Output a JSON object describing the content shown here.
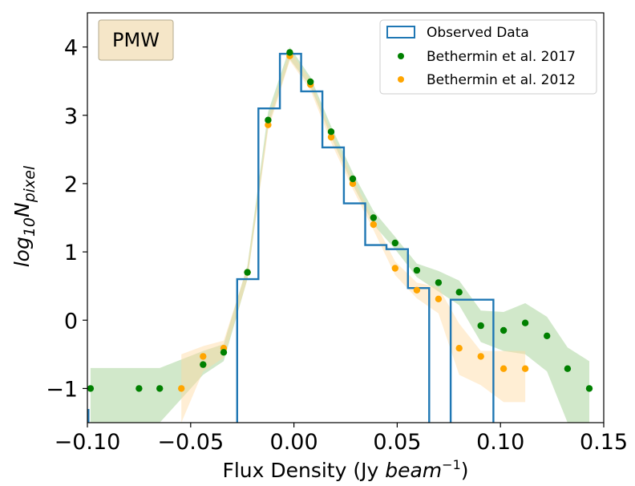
{
  "chart_data": {
    "type": "scatter",
    "title": "",
    "band_label": "PMW",
    "xlabel_prefix": "Flux Density (Jy ",
    "xlabel_unit": "beam",
    "xlabel_exp": "−1",
    "xlabel_suffix": ")",
    "ylabel_base": "log",
    "ylabel_sub": "10",
    "ylabel_var": "N",
    "ylabel_var_sub": "pixel",
    "xlim": [
      -0.1,
      0.15
    ],
    "ylim": [
      -1.5,
      4.5
    ],
    "x_ticks": [
      -0.1,
      -0.05,
      0.0,
      0.05,
      0.1,
      0.15
    ],
    "x_tick_labels": [
      "−0.10",
      "−0.05",
      "0.00",
      "0.05",
      "0.10",
      "0.15"
    ],
    "y_ticks": [
      -1,
      0,
      1,
      2,
      3,
      4
    ],
    "y_tick_labels": [
      "−1",
      "0",
      "1",
      "2",
      "3",
      "4"
    ],
    "legend": {
      "placement": "top-right",
      "entries": [
        "Observed Data",
        "Bethermin et al. 2017",
        "Bethermin et al. 2012"
      ]
    },
    "colors": {
      "observed": "#1f77b4",
      "bethermin2017": "#008000",
      "bethermin2012": "#ffa500",
      "band2017": "#9acd8a",
      "band2012": "#ffd9a0",
      "tag_fill": "#f5e6c8"
    },
    "series": [
      {
        "name": "Observed Data",
        "kind": "step",
        "edges": [
          -0.1,
          -0.0965,
          -0.0862,
          -0.0758,
          -0.0655,
          -0.0551,
          -0.0448,
          -0.0344,
          -0.0275,
          -0.0172,
          -0.0068,
          0.0035,
          0.0138,
          0.0242,
          0.0345,
          0.0448,
          0.0552,
          0.0655,
          0.0759,
          0.0862,
          0.0966
        ],
        "values": [
          null,
          null,
          null,
          null,
          null,
          null,
          null,
          null,
          0.6,
          3.1,
          3.9,
          3.35,
          2.53,
          1.71,
          1.1,
          1.04,
          0.47,
          null,
          0.3,
          0.3
        ]
      },
      {
        "name": "Bethermin et al. 2017",
        "kind": "points",
        "x": [
          -0.0985,
          -0.075,
          -0.065,
          -0.044,
          -0.034,
          -0.0225,
          -0.0125,
          -0.002,
          0.008,
          0.018,
          0.0285,
          0.0385,
          0.049,
          0.0595,
          0.07,
          0.08,
          0.0905,
          0.1015,
          0.112,
          0.1225,
          0.1325,
          0.143
        ],
        "y": [
          -1.0,
          -1.0,
          -1.0,
          -0.65,
          -0.47,
          0.7,
          2.93,
          3.92,
          3.49,
          2.76,
          2.07,
          1.5,
          1.13,
          0.73,
          0.55,
          0.41,
          -0.08,
          -0.15,
          -0.04,
          -0.23,
          -0.71,
          -1.0
        ]
      },
      {
        "name": "Bethermin et al. 2012",
        "kind": "points",
        "x": [
          -0.0545,
          -0.044,
          -0.034,
          -0.0225,
          -0.0125,
          -0.002,
          0.008,
          0.018,
          0.0285,
          0.0385,
          0.049,
          0.0595,
          0.07,
          0.08,
          0.0905,
          0.1015,
          0.112
        ],
        "y": [
          -1.0,
          -0.53,
          -0.41,
          0.7,
          2.86,
          3.87,
          3.45,
          2.68,
          2.0,
          1.4,
          0.76,
          0.44,
          0.31,
          -0.41,
          -0.53,
          -0.71,
          -0.71
        ]
      }
    ],
    "bands": [
      {
        "name": "Bethermin et al. 2017 range",
        "x": [
          -0.0985,
          -0.075,
          -0.065,
          -0.044,
          -0.034,
          -0.0225,
          -0.0125,
          -0.002,
          0.008,
          0.018,
          0.0285,
          0.0385,
          0.049,
          0.0595,
          0.07,
          0.08,
          0.0905,
          0.1015,
          0.112,
          0.1225,
          0.1325,
          0.143
        ],
        "low": [
          -1.5,
          -1.5,
          -1.5,
          -0.8,
          -0.6,
          0.6,
          2.83,
          3.82,
          3.42,
          2.68,
          1.98,
          1.4,
          1.04,
          0.63,
          0.42,
          0.22,
          -0.32,
          -0.45,
          -0.5,
          -0.75,
          -1.5,
          -1.5
        ],
        "high": [
          -0.7,
          -0.7,
          -0.7,
          -0.45,
          -0.35,
          0.8,
          3.05,
          4.0,
          3.56,
          2.84,
          2.16,
          1.6,
          1.22,
          0.83,
          0.72,
          0.58,
          0.14,
          0.12,
          0.25,
          0.05,
          -0.4,
          -0.6
        ]
      },
      {
        "name": "Bethermin et al. 2012 range",
        "x": [
          -0.0545,
          -0.044,
          -0.034,
          -0.0225,
          -0.0125,
          -0.002,
          0.008,
          0.018,
          0.0285,
          0.0385,
          0.049,
          0.0595,
          0.07,
          0.08,
          0.0905,
          0.1015,
          0.112
        ],
        "low": [
          -1.5,
          -0.75,
          -0.55,
          0.6,
          2.78,
          3.8,
          3.37,
          2.6,
          1.92,
          1.32,
          0.66,
          0.32,
          0.1,
          -0.8,
          -0.95,
          -1.2,
          -1.2
        ],
        "high": [
          -0.5,
          -0.38,
          -0.3,
          0.78,
          2.95,
          3.95,
          3.52,
          2.76,
          2.08,
          1.48,
          0.86,
          0.55,
          0.48,
          -0.05,
          -0.45,
          -0.45,
          -0.45
        ]
      }
    ]
  }
}
